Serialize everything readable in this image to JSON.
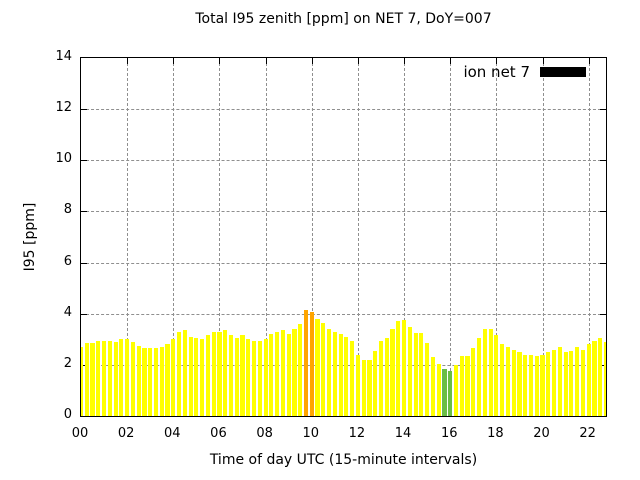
{
  "chart_data": {
    "type": "bar",
    "title": "Total I95 zenith [ppm] on NET 7, DoY=007",
    "xlabel": "Time of day UTC (15-minute intervals)",
    "ylabel": "I95 [ppm]",
    "ylim": [
      0,
      14
    ],
    "yticks": [
      0,
      2,
      4,
      6,
      8,
      10,
      12,
      14
    ],
    "xlim_hours": [
      0,
      22.75
    ],
    "xticks_hours": [
      0,
      2,
      4,
      6,
      8,
      10,
      12,
      14,
      16,
      18,
      20,
      22
    ],
    "xtick_labels": [
      "00",
      "02",
      "04",
      "06",
      "08",
      "10",
      "12",
      "14",
      "16",
      "18",
      "20",
      "22"
    ],
    "grid": true,
    "bar_interval_minutes": 15,
    "legend": {
      "label": "ion net 7",
      "swatch_color": "#000000",
      "position": "top-right"
    },
    "colors": {
      "bar_default": "#ffff00",
      "bar_max_highlight": "#ffa500",
      "bar_min_highlight": "#6abe45",
      "grid": "#8f8f8f",
      "axis": "#000000",
      "background": "#ffffff"
    },
    "max_highlight_times": [
      "09:45",
      "10:00"
    ],
    "min_highlight_times": [
      "15:45",
      "16:00"
    ],
    "times": [
      "00:00",
      "00:15",
      "00:30",
      "00:45",
      "01:00",
      "01:15",
      "01:30",
      "01:45",
      "02:00",
      "02:15",
      "02:30",
      "02:45",
      "03:00",
      "03:15",
      "03:30",
      "03:45",
      "04:00",
      "04:15",
      "04:30",
      "04:45",
      "05:00",
      "05:15",
      "05:30",
      "05:45",
      "06:00",
      "06:15",
      "06:30",
      "06:45",
      "07:00",
      "07:15",
      "07:30",
      "07:45",
      "08:00",
      "08:15",
      "08:30",
      "08:45",
      "09:00",
      "09:15",
      "09:30",
      "09:45",
      "10:00",
      "10:15",
      "10:30",
      "10:45",
      "11:00",
      "11:15",
      "11:30",
      "11:45",
      "12:00",
      "12:15",
      "12:30",
      "12:45",
      "13:00",
      "13:15",
      "13:30",
      "13:45",
      "14:00",
      "14:15",
      "14:30",
      "14:45",
      "15:00",
      "15:15",
      "15:30",
      "15:45",
      "16:00",
      "16:15",
      "16:30",
      "16:45",
      "17:00",
      "17:15",
      "17:30",
      "17:45",
      "18:00",
      "18:15",
      "18:30",
      "18:45",
      "19:00",
      "19:15",
      "19:30",
      "19:45",
      "20:00",
      "20:15",
      "20:30",
      "20:45",
      "21:00",
      "21:15",
      "21:30",
      "21:45",
      "22:00",
      "22:15",
      "22:30",
      "22:45"
    ],
    "values": [
      2.7,
      2.85,
      2.85,
      2.95,
      2.95,
      2.95,
      2.9,
      3.0,
      3.0,
      2.9,
      2.75,
      2.65,
      2.65,
      2.65,
      2.7,
      2.8,
      3.0,
      3.3,
      3.35,
      3.1,
      3.05,
      3.0,
      3.15,
      3.3,
      3.3,
      3.35,
      3.15,
      3.05,
      3.15,
      3.0,
      2.95,
      2.95,
      3.0,
      3.2,
      3.3,
      3.35,
      3.2,
      3.4,
      3.6,
      4.15,
      4.05,
      3.8,
      3.65,
      3.4,
      3.3,
      3.2,
      3.1,
      2.95,
      2.4,
      2.2,
      2.2,
      2.55,
      2.95,
      3.05,
      3.4,
      3.7,
      3.75,
      3.5,
      3.25,
      3.25,
      2.85,
      2.3,
      2.05,
      1.85,
      1.75,
      2.0,
      2.35,
      2.35,
      2.65,
      3.05,
      3.4,
      3.4,
      3.15,
      2.8,
      2.7,
      2.6,
      2.5,
      2.4,
      2.4,
      2.35,
      2.4,
      2.5,
      2.6,
      2.7,
      2.5,
      2.55,
      2.7,
      2.6,
      2.8,
      2.95,
      3.05,
      2.9
    ]
  }
}
